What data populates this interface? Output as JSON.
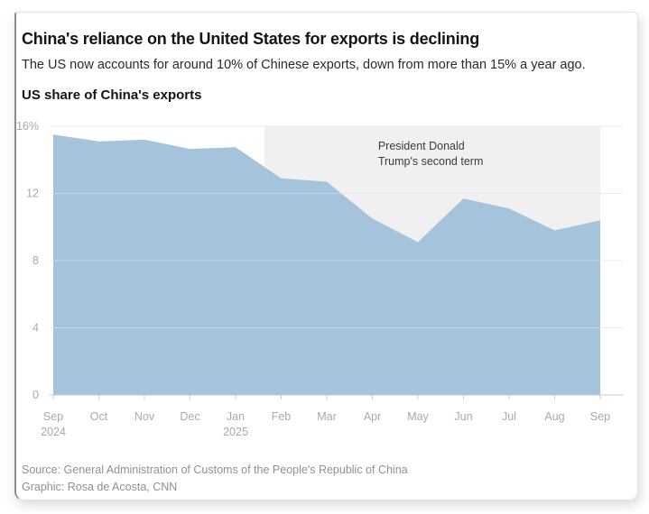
{
  "page": {
    "title": "China's reliance on the United States for exports is declining",
    "subtitle": "The US now accounts for around 10% of Chinese exports, down from more than 15% a year ago.",
    "chart_label": "US share of China's exports",
    "source": "Source: General Administration of Customs of the People's Republic of China",
    "credit": "Graphic: Rosa de Acosta, CNN"
  },
  "chart_data": {
    "type": "area",
    "title": "US share of China's exports",
    "unit": "percent",
    "categories": [
      "Sep 2024",
      "Oct",
      "Nov",
      "Dec",
      "Jan 2025",
      "Feb",
      "Mar",
      "Apr",
      "May",
      "Jun",
      "Jul",
      "Aug",
      "Sep"
    ],
    "x_tick_lines": [
      [
        "Sep",
        "2024"
      ],
      [
        "Oct"
      ],
      [
        "Nov"
      ],
      [
        "Dec"
      ],
      [
        "Jan",
        "2025"
      ],
      [
        "Feb"
      ],
      [
        "Mar"
      ],
      [
        "Apr"
      ],
      [
        "May"
      ],
      [
        "Jun"
      ],
      [
        "Jul"
      ],
      [
        "Aug"
      ],
      [
        "Sep"
      ]
    ],
    "values": [
      15.5,
      15.1,
      15.2,
      14.65,
      14.75,
      12.9,
      12.7,
      10.5,
      9.1,
      11.7,
      11.1,
      9.8,
      10.4
    ],
    "ylim": [
      0,
      16
    ],
    "yticks": [
      {
        "value": 0,
        "label": "0"
      },
      {
        "value": 4,
        "label": "4"
      },
      {
        "value": 8,
        "label": "8"
      },
      {
        "value": 12,
        "label": "12"
      },
      {
        "value": 16,
        "label": "16%"
      }
    ],
    "grid": true,
    "legend": "none",
    "shaded_region": {
      "label_lines": [
        "President Donald",
        "Trump's second term"
      ],
      "start_month_index": 4.63,
      "end_month_index": 12
    },
    "colors": {
      "area_fill": "#a6c3dc",
      "shaded_region_fill": "#f0f0f0",
      "gridline": "#e2e2e2",
      "gridline_over_area": "rgba(255,255,255,0.32)",
      "axis_line": "#c9c9c9",
      "axis_text": "#a9a9a9",
      "annotation_text": "#3c3c3c"
    }
  }
}
